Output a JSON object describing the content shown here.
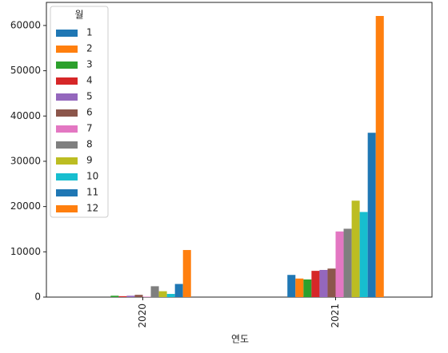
{
  "chart_data": {
    "type": "bar",
    "xlabel": "연도",
    "legend_title": "월",
    "legend_loc": "upper left",
    "categories": [
      "2020",
      "2021"
    ],
    "series": [
      {
        "name": "1",
        "color": "#1f77b4",
        "values": [
          0,
          4900
        ]
      },
      {
        "name": "2",
        "color": "#ff7f0e",
        "values": [
          0,
          4100
        ]
      },
      {
        "name": "3",
        "color": "#2ca02c",
        "values": [
          300,
          3900
        ]
      },
      {
        "name": "4",
        "color": "#d62728",
        "values": [
          200,
          5800
        ]
      },
      {
        "name": "5",
        "color": "#9467bd",
        "values": [
          300,
          6000
        ]
      },
      {
        "name": "6",
        "color": "#8c564b",
        "values": [
          500,
          6300
        ]
      },
      {
        "name": "7",
        "color": "#e377c2",
        "values": [
          100,
          14500
        ]
      },
      {
        "name": "8",
        "color": "#7f7f7f",
        "values": [
          2400,
          15100
        ]
      },
      {
        "name": "9",
        "color": "#bcbd22",
        "values": [
          1300,
          21300
        ]
      },
      {
        "name": "10",
        "color": "#17becf",
        "values": [
          700,
          18800
        ]
      },
      {
        "name": "11",
        "color": "#1f77b4",
        "values": [
          2900,
          36300
        ]
      },
      {
        "name": "12",
        "color": "#ff7f0e",
        "values": [
          10400,
          62100
        ]
      }
    ],
    "ylim": [
      0,
      65100
    ],
    "yticks": [
      0,
      10000,
      20000,
      30000,
      40000,
      50000,
      60000
    ]
  }
}
